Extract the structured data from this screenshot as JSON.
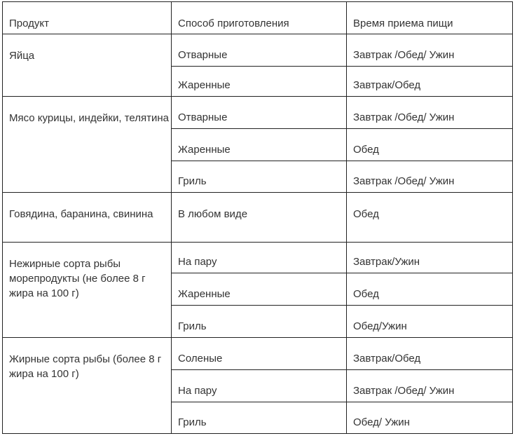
{
  "headers": [
    "Продукт",
    "Способ приготовления",
    "Время приема пищи"
  ],
  "groups": [
    {
      "product": "Яйца",
      "rows": [
        {
          "method": "Отварные",
          "time": "Завтрак /Обед/ Ужин"
        },
        {
          "method": "Жаренные",
          "time": "Завтрак/Обед"
        }
      ]
    },
    {
      "product": "Мясо курицы, индейки, телятина",
      "rows": [
        {
          "method": "Отварные",
          "time": "Завтрак /Обед/ Ужин"
        },
        {
          "method": "Жаренные",
          "time": "Обед"
        },
        {
          "method": "Гриль",
          "time": "Завтрак /Обед/ Ужин"
        }
      ]
    },
    {
      "product": "Говядина, баранина, свинина",
      "rows": [
        {
          "method": " В любом виде",
          "time": "Обед"
        }
      ]
    },
    {
      "product": "Нежирные сорта рыбы морепродукты (не  более 8 г жира на 100 г)",
      "rows": [
        {
          "method": "На пару",
          "time": "Завтрак/Ужин"
        },
        {
          "method": "Жаренные",
          "time": "Обед"
        },
        {
          "method": "Гриль",
          "time": "Обед/Ужин"
        }
      ]
    },
    {
      "product": "Жирные сорта рыбы (более 8 г жира на 100 г)",
      "rows": [
        {
          "method": "Соленые",
          "time": "Завтрак/Обед"
        },
        {
          "method": "На пару",
          "time": "Завтрак /Обед/ Ужин"
        },
        {
          "method": "Гриль",
          "time": "Обед/ Ужин"
        }
      ]
    }
  ]
}
